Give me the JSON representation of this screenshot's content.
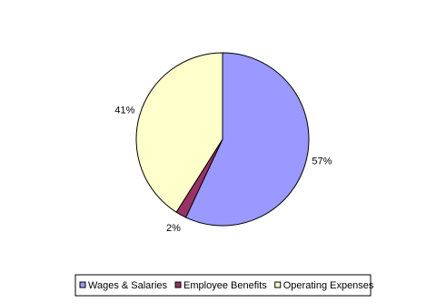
{
  "chart_data": {
    "type": "pie",
    "categories": [
      "Wages & Salaries",
      "Employee Benefits",
      "Operating Expenses"
    ],
    "values": [
      57,
      2,
      41
    ],
    "value_labels": [
      "57%",
      "2%",
      "41%"
    ],
    "colors": [
      "#9999ff",
      "#993366",
      "#ffffcc"
    ],
    "legend": "bottom"
  }
}
